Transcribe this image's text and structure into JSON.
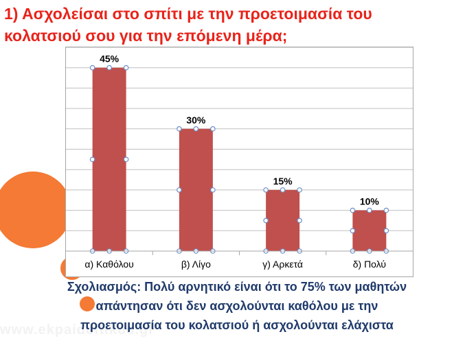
{
  "slide": {
    "title": "1) Ασχολείσαι στο σπίτι με την προετοιμασία του κολατσιού σου για την επόμενη μέρα;",
    "comment_line1": "Σχολιασμός: Πολύ αρνητικό είναι ότι το 75% των μαθητών",
    "comment_line2": "απάντησαν ότι δεν ασχολούνται καθόλου με την",
    "comment_line3": "προετοιμασία του κολατσιού ή ασχολούνται ελάχιστα",
    "watermark": "www.ekpaideftikos.gr"
  },
  "colors": {
    "title": "#e8231a",
    "bar": "#c0504d",
    "accent": "#f47a35",
    "comment": "#1f3a6b"
  },
  "chart_data": {
    "type": "bar",
    "categories": [
      "α) Καθόλου",
      "β) Λίγο",
      "γ) Αρκετά",
      "δ) Πολύ"
    ],
    "values": [
      45,
      30,
      15,
      10
    ],
    "labels": [
      "45%",
      "30%",
      "15%",
      "10%"
    ],
    "ylim": [
      0,
      50
    ],
    "grid": true,
    "legend": "none"
  }
}
